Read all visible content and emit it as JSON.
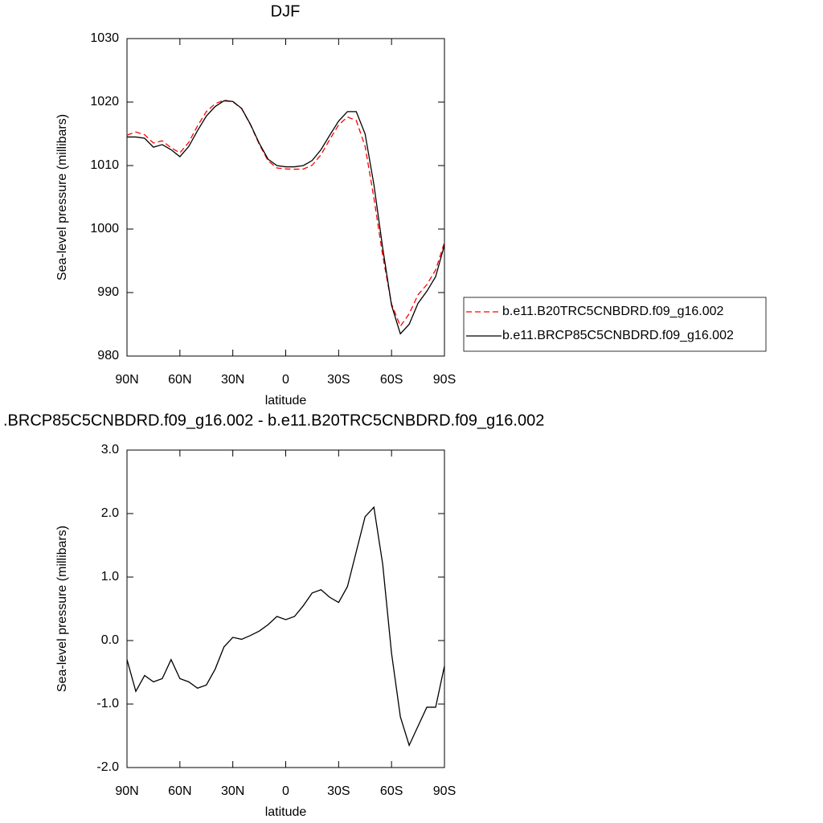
{
  "chart_data": [
    {
      "type": "line",
      "title": "DJF",
      "xlabel": "latitude",
      "ylabel": "Sea-level pressure (millibars)",
      "x": [
        90,
        85,
        80,
        75,
        70,
        65,
        60,
        55,
        50,
        45,
        40,
        35,
        30,
        25,
        20,
        15,
        10,
        5,
        0,
        -5,
        -10,
        -15,
        -20,
        -25,
        -30,
        -35,
        -40,
        -45,
        -50,
        -55,
        -60,
        -65,
        -70,
        -75,
        -80,
        -85,
        -90
      ],
      "series": [
        {
          "name": "b.e11.B20TRC5CNBDRD.f09_g16.002",
          "color": "#ff0000",
          "dashed": true,
          "values": [
            1014.8,
            1015.3,
            1014.85,
            1013.55,
            1013.9,
            1012.8,
            1012.0,
            1013.65,
            1016.25,
            1018.5,
            1019.75,
            1020.3,
            1020.05,
            1018.98,
            1016.42,
            1013.35,
            1010.75,
            1009.62,
            1009.47,
            1009.42,
            1009.45,
            1010.05,
            1011.7,
            1014.12,
            1016.4,
            1017.65,
            1017.1,
            1013.05,
            1004.9,
            995.8,
            988.2,
            984.7,
            986.65,
            989.65,
            991.25,
            993.55,
            997.9
          ]
        },
        {
          "name": "b.e11.BRCP85C5CNBDRD.f09_g16.002",
          "color": "#000000",
          "dashed": false,
          "values": [
            1014.5,
            1014.5,
            1014.3,
            1012.9,
            1013.3,
            1012.5,
            1011.4,
            1013.0,
            1015.5,
            1017.8,
            1019.3,
            1020.2,
            1020.1,
            1019.0,
            1016.5,
            1013.5,
            1011.0,
            1010.0,
            1009.8,
            1009.8,
            1010.0,
            1010.8,
            1012.5,
            1014.8,
            1017.0,
            1018.5,
            1018.5,
            1015.0,
            1007.0,
            997.0,
            988.0,
            983.5,
            985.0,
            988.3,
            990.2,
            992.5,
            997.5
          ]
        }
      ],
      "xlim": [
        90,
        -90
      ],
      "xticks": [
        {
          "value": 90,
          "label": "90N"
        },
        {
          "value": 60,
          "label": "60N"
        },
        {
          "value": 30,
          "label": "30N"
        },
        0,
        {
          "value": -30,
          "label": "30S"
        },
        {
          "value": -60,
          "label": "60S"
        },
        {
          "value": -90,
          "label": "90S"
        }
      ],
      "ylim": [
        980,
        1030
      ],
      "yticks": [
        980,
        990,
        1000,
        1010,
        1020,
        1030
      ]
    },
    {
      "type": "line",
      "title": ".BRCP85C5CNBDRD.f09_g16.002 - b.e11.B20TRC5CNBDRD.f09_g16.002",
      "xlabel": "latitude",
      "ylabel": "Sea-level pressure (millibars)",
      "x": [
        90,
        85,
        80,
        75,
        70,
        65,
        60,
        55,
        50,
        45,
        40,
        35,
        30,
        25,
        20,
        15,
        10,
        5,
        0,
        -5,
        -10,
        -15,
        -20,
        -25,
        -30,
        -35,
        -40,
        -45,
        -50,
        -55,
        -60,
        -65,
        -70,
        -75,
        -80,
        -85,
        -90
      ],
      "color": "#000000",
      "values": [
        -0.3,
        -0.8,
        -0.55,
        -0.65,
        -0.6,
        -0.3,
        -0.6,
        -0.65,
        -0.75,
        -0.7,
        -0.45,
        -0.1,
        0.05,
        0.02,
        0.08,
        0.15,
        0.25,
        0.38,
        0.33,
        0.38,
        0.55,
        0.75,
        0.8,
        0.68,
        0.6,
        0.85,
        1.4,
        1.95,
        2.1,
        1.2,
        -0.2,
        -1.2,
        -1.65,
        -1.35,
        -1.05,
        -1.05,
        -0.4
      ],
      "xlim": [
        90,
        -90
      ],
      "xticks": [
        {
          "value": 90,
          "label": "90N"
        },
        {
          "value": 60,
          "label": "60N"
        },
        {
          "value": 30,
          "label": "30N"
        },
        0,
        {
          "value": -30,
          "label": "30S"
        },
        {
          "value": -60,
          "label": "60S"
        },
        {
          "value": -90,
          "label": "90S"
        }
      ],
      "ylim": [
        -2,
        3
      ],
      "yticks": [
        {
          "value": -2,
          "label": "-2.0"
        },
        {
          "value": -1,
          "label": "-1.0"
        },
        {
          "value": 0,
          "label": "0.0"
        },
        {
          "value": 1,
          "label": "1.0"
        },
        {
          "value": 2,
          "label": "2.0"
        },
        {
          "value": 3,
          "label": "3.0"
        }
      ]
    }
  ]
}
